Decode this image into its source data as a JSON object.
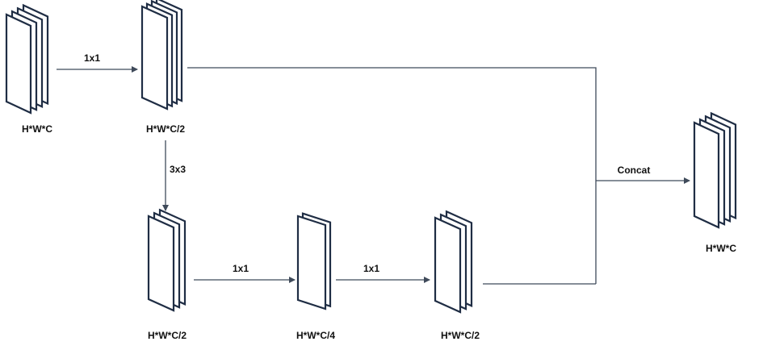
{
  "colors": {
    "sheet_fill": "#ffffff",
    "sheet_edge": "#1f2d44",
    "arrow": "#3f4a5a",
    "text": "#111111"
  },
  "diagram": {
    "input_block": {
      "label": "H*W*C",
      "sheet_count": 4
    },
    "first_conv": {
      "label": "H*W*C/2",
      "sheet_count": 4
    },
    "branch_block_a": {
      "label": "H*W*C/2",
      "sheet_count": 3
    },
    "bottleneck_block": {
      "label": "H*W*C/4",
      "sheet_count": 2
    },
    "branch_block_b": {
      "label": "H*W*C/2",
      "sheet_count": 3
    },
    "output_block": {
      "label": "H*W*C",
      "sheet_count": 4
    },
    "edges": {
      "input_to_first": "1x1",
      "first_to_branch": "3x3",
      "branch_to_bottleneck": "1x1",
      "bottleneck_to_branch_b": "1x1",
      "merge_to_output": "Concat"
    }
  }
}
